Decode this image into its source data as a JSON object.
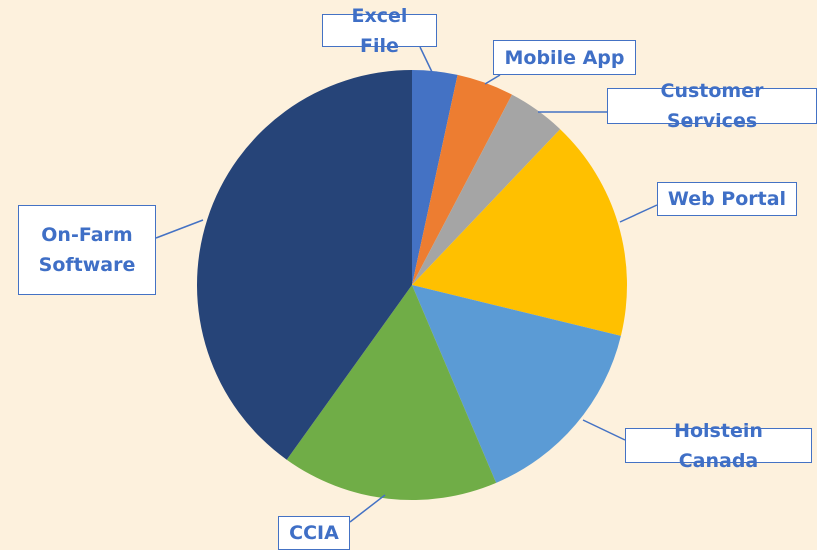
{
  "chart_data": {
    "type": "pie",
    "categories": [
      "Excel File",
      "Mobile App",
      "Customer Services",
      "Web Portal",
      "Holstein Canada",
      "CCIA",
      "On-Farm Software"
    ],
    "values": [
      3.4,
      4.3,
      4.4,
      16.7,
      14.8,
      16.3,
      40.1
    ],
    "colors": [
      "#4472c4",
      "#ed7d31",
      "#a5a5a5",
      "#ffc000",
      "#5b9bd5",
      "#70ad47",
      "#264478"
    ]
  }
}
